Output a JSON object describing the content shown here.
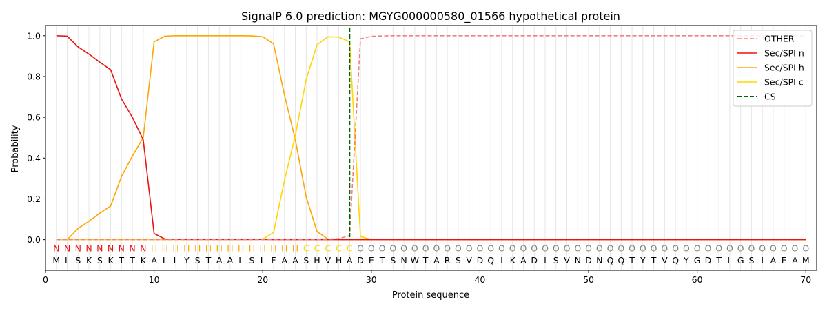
{
  "chart_data": {
    "type": "line",
    "title": "SignalP 6.0 prediction: MGYG000000580_01566 hypothetical protein",
    "xlabel": "Protein sequence",
    "ylabel": "Probability",
    "xlim": [
      0,
      71
    ],
    "ylim": [
      -0.15,
      1.05
    ],
    "xticks": [
      0,
      10,
      20,
      30,
      40,
      50,
      60,
      70
    ],
    "yticks": [
      0.0,
      0.2,
      0.4,
      0.6,
      0.8,
      1.0
    ],
    "xtick_labels": [
      "0",
      "10",
      "20",
      "30",
      "40",
      "50",
      "60",
      "70"
    ],
    "ytick_labels": [
      "0.0",
      "0.2",
      "0.4",
      "0.6",
      "0.8",
      "1.0"
    ],
    "grid": "vertical lines at each residue position",
    "legend_position": "top-right",
    "colors": {
      "other": "#f08080",
      "n": "#ee1111",
      "h": "#ffa500",
      "c": "#ffd700",
      "cs": "#006400",
      "label_other": "#808080"
    },
    "sequence": [
      "M",
      "L",
      "S",
      "K",
      "S",
      "K",
      "T",
      "T",
      "K",
      "A",
      "L",
      "L",
      "Y",
      "S",
      "T",
      "A",
      "A",
      "L",
      "S",
      "L",
      "F",
      "A",
      "A",
      "S",
      "H",
      "V",
      "H",
      "A",
      "D",
      "E",
      "T",
      "S",
      "N",
      "W",
      "T",
      "A",
      "R",
      "S",
      "V",
      "D",
      "Q",
      "I",
      "K",
      "A",
      "D",
      "I",
      "S",
      "V",
      "N",
      "D",
      "N",
      "Q",
      "Q",
      "T",
      "Y",
      "T",
      "V",
      "Q",
      "Y",
      "G",
      "D",
      "T",
      "L",
      "G",
      "S",
      "I",
      "A",
      "E",
      "A",
      "M"
    ],
    "region_labels": [
      "N",
      "N",
      "N",
      "N",
      "N",
      "N",
      "N",
      "N",
      "N",
      "H",
      "H",
      "H",
      "H",
      "H",
      "H",
      "H",
      "H",
      "H",
      "H",
      "H",
      "H",
      "H",
      "H",
      "C",
      "C",
      "C",
      "C",
      "C",
      "O",
      "O",
      "O",
      "O",
      "O",
      "O",
      "O",
      "O",
      "O",
      "O",
      "O",
      "O",
      "O",
      "O",
      "O",
      "O",
      "O",
      "O",
      "O",
      "O",
      "O",
      "O",
      "O",
      "O",
      "O",
      "O",
      "O",
      "O",
      "O",
      "O",
      "O",
      "O",
      "O",
      "O",
      "O",
      "O",
      "O",
      "O",
      "O",
      "O",
      "O",
      "O"
    ],
    "cleavage_site": 28,
    "series": [
      {
        "name": "OTHER",
        "style": "dashed",
        "x": [
          1,
          2,
          3,
          4,
          5,
          6,
          7,
          8,
          9,
          10,
          11,
          12,
          13,
          14,
          15,
          16,
          17,
          18,
          19,
          20,
          21,
          22,
          23,
          24,
          25,
          26,
          27,
          28,
          29,
          30,
          31,
          32,
          33,
          34,
          35,
          36,
          37,
          38,
          39,
          40,
          41,
          42,
          43,
          44,
          45,
          46,
          47,
          48,
          49,
          50,
          51,
          52,
          53,
          54,
          55,
          56,
          57,
          58,
          59,
          60,
          61,
          62,
          63,
          64,
          65,
          66,
          67,
          68,
          69,
          70
        ],
        "values": [
          0,
          0,
          0,
          0,
          0,
          0,
          0,
          0,
          0,
          0,
          0,
          0,
          0,
          0,
          0,
          0,
          0,
          0,
          0,
          0,
          0,
          0,
          0,
          0,
          0,
          0.002,
          0.005,
          0.02,
          0.985,
          0.997,
          0.999,
          1,
          1,
          1,
          1,
          1,
          1,
          1,
          1,
          1,
          1,
          1,
          1,
          1,
          1,
          1,
          1,
          1,
          1,
          1,
          1,
          1,
          1,
          1,
          1,
          1,
          1,
          1,
          1,
          1,
          1,
          1,
          1,
          1,
          1,
          1,
          1,
          1,
          1,
          1
        ]
      },
      {
        "name": "Sec/SPI n",
        "style": "solid",
        "x": [
          1,
          2,
          3,
          4,
          5,
          6,
          7,
          8,
          9,
          10,
          11,
          12,
          13,
          14,
          15,
          16,
          17,
          18,
          19,
          20,
          21,
          22,
          23,
          24,
          25,
          26,
          27,
          28,
          29,
          30,
          31,
          32,
          33,
          34,
          35,
          36,
          37,
          38,
          39,
          40,
          41,
          42,
          43,
          44,
          45,
          46,
          47,
          48,
          49,
          50,
          51,
          52,
          53,
          54,
          55,
          56,
          57,
          58,
          59,
          60,
          61,
          62,
          63,
          64,
          65,
          66,
          67,
          68,
          69,
          70
        ],
        "values": [
          1.0,
          0.998,
          0.945,
          0.91,
          0.87,
          0.833,
          0.69,
          0.6,
          0.49,
          0.03,
          0.003,
          0.002,
          0.001,
          0.001,
          0.001,
          0.001,
          0.001,
          0.001,
          0.001,
          0.001,
          0,
          0,
          0,
          0,
          0,
          0,
          0,
          0,
          0,
          0,
          0,
          0,
          0,
          0,
          0,
          0,
          0,
          0,
          0,
          0,
          0,
          0,
          0,
          0,
          0,
          0,
          0,
          0,
          0,
          0,
          0,
          0,
          0,
          0,
          0,
          0,
          0,
          0,
          0,
          0,
          0,
          0,
          0,
          0,
          0,
          0,
          0,
          0,
          0,
          0
        ]
      },
      {
        "name": "Sec/SPI h",
        "style": "solid",
        "x": [
          1,
          2,
          3,
          4,
          5,
          6,
          7,
          8,
          9,
          10,
          11,
          12,
          13,
          14,
          15,
          16,
          17,
          18,
          19,
          20,
          21,
          22,
          23,
          24,
          25,
          26,
          27,
          28,
          29,
          30,
          31,
          32,
          33,
          34,
          35,
          36,
          37,
          38,
          39,
          40,
          41,
          42,
          43,
          44,
          45,
          46,
          47,
          48,
          49,
          50,
          51,
          52,
          53,
          54,
          55,
          56,
          57,
          58,
          59,
          60,
          61,
          62,
          63,
          64,
          65,
          66,
          67,
          68,
          69,
          70
        ],
        "values": [
          0,
          0,
          0.055,
          0.09,
          0.13,
          0.165,
          0.31,
          0.41,
          0.5,
          0.97,
          0.998,
          1.0,
          1.0,
          1.0,
          1.0,
          1.0,
          1.0,
          1.0,
          0.999,
          0.995,
          0.96,
          0.71,
          0.49,
          0.21,
          0.04,
          0.003,
          0,
          0,
          0,
          0,
          0,
          0,
          0,
          0,
          0,
          0,
          0,
          0,
          0,
          0,
          0,
          0,
          0,
          0,
          0,
          0,
          0,
          0,
          0,
          0,
          0,
          0,
          0,
          0,
          0,
          0,
          0,
          0,
          0,
          0,
          0,
          0,
          0,
          0,
          0,
          0,
          0,
          0,
          0,
          0
        ]
      },
      {
        "name": "Sec/SPI c",
        "style": "solid",
        "x": [
          1,
          2,
          3,
          4,
          5,
          6,
          7,
          8,
          9,
          10,
          11,
          12,
          13,
          14,
          15,
          16,
          17,
          18,
          19,
          20,
          21,
          22,
          23,
          24,
          25,
          26,
          27,
          28,
          29,
          30,
          31,
          32,
          33,
          34,
          35,
          36,
          37,
          38,
          39,
          40,
          41,
          42,
          43,
          44,
          45,
          46,
          47,
          48,
          49,
          50,
          51,
          52,
          53,
          54,
          55,
          56,
          57,
          58,
          59,
          60,
          61,
          62,
          63,
          64,
          65,
          66,
          67,
          68,
          69,
          70
        ],
        "values": [
          0,
          0,
          0,
          0,
          0,
          0,
          0,
          0,
          0,
          0,
          0,
          0,
          0,
          0,
          0,
          0,
          0,
          0,
          0,
          0.003,
          0.035,
          0.29,
          0.51,
          0.785,
          0.955,
          0.995,
          0.993,
          0.97,
          0.015,
          0.001,
          0,
          0,
          0,
          0,
          0,
          0,
          0,
          0,
          0,
          0,
          0,
          0,
          0,
          0,
          0,
          0,
          0,
          0,
          0,
          0,
          0,
          0,
          0,
          0,
          0,
          0,
          0,
          0,
          0,
          0,
          0,
          0,
          0,
          0,
          0,
          0,
          0,
          0,
          0,
          0
        ]
      },
      {
        "name": "CS",
        "style": "dashed",
        "x": [],
        "values": []
      }
    ]
  }
}
